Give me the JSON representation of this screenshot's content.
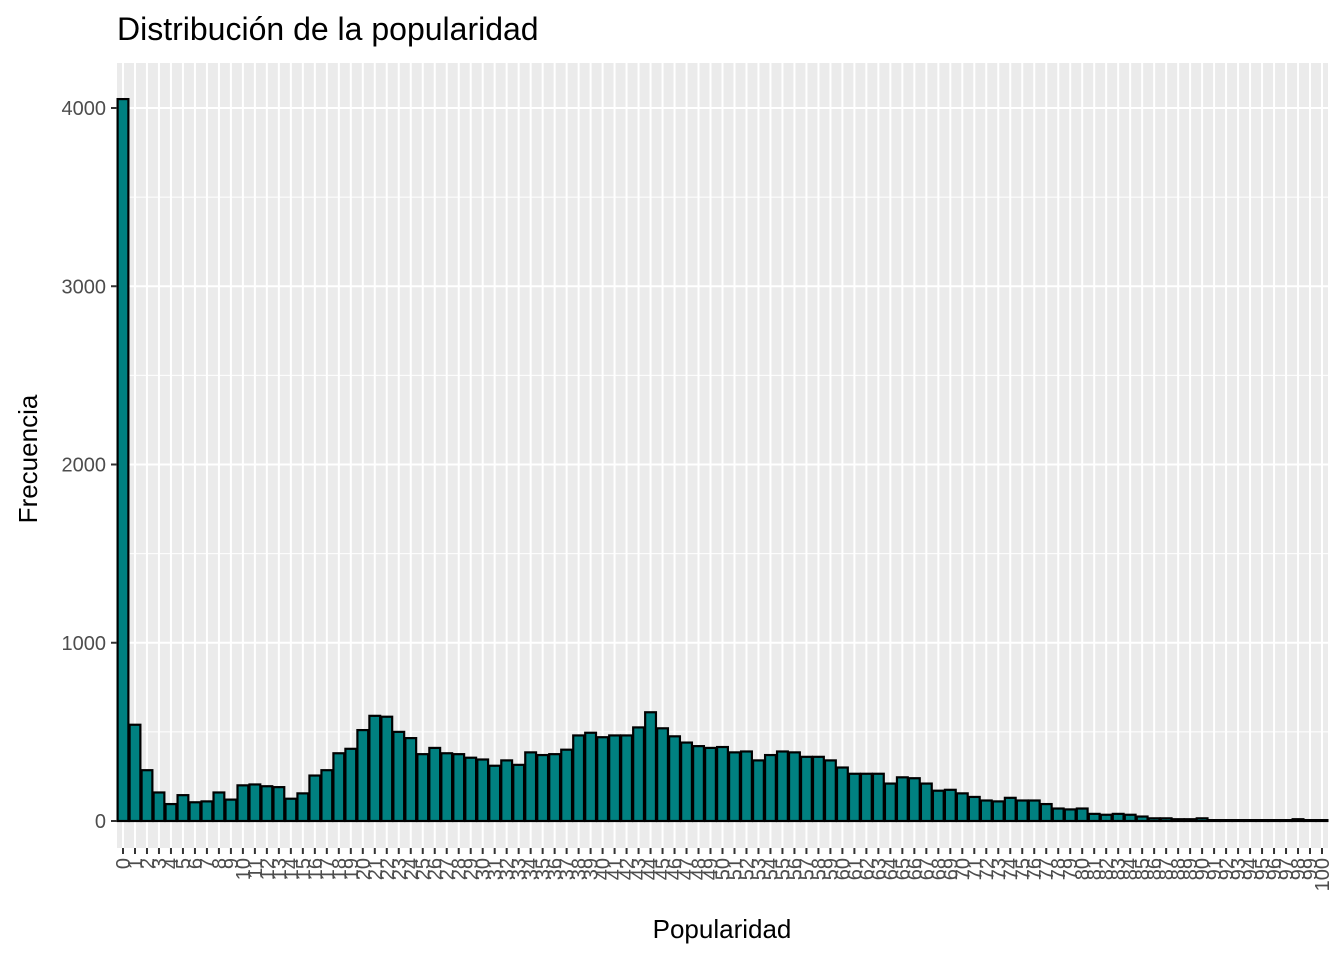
{
  "chart_data": {
    "type": "bar",
    "title": "Distribución de la popularidad",
    "xlabel": "Popularidad",
    "ylabel": "Frecuencia",
    "ylim": [
      0,
      4250
    ],
    "y_ticks": [
      0,
      1000,
      2000,
      3000,
      4000
    ],
    "categories": [
      "0",
      "1",
      "2",
      "3",
      "4",
      "5",
      "6",
      "7",
      "8",
      "9",
      "10",
      "11",
      "12",
      "13",
      "14",
      "15",
      "16",
      "17",
      "18",
      "19",
      "20",
      "21",
      "22",
      "23",
      "24",
      "25",
      "26",
      "27",
      "28",
      "29",
      "30",
      "31",
      "32",
      "33",
      "34",
      "35",
      "36",
      "37",
      "38",
      "39",
      "40",
      "41",
      "42",
      "43",
      "44",
      "45",
      "46",
      "47",
      "48",
      "49",
      "50",
      "51",
      "52",
      "53",
      "54",
      "55",
      "56",
      "57",
      "58",
      "59",
      "60",
      "61",
      "62",
      "63",
      "64",
      "65",
      "66",
      "67",
      "68",
      "69",
      "70",
      "71",
      "72",
      "73",
      "74",
      "75",
      "76",
      "77",
      "78",
      "79",
      "80",
      "81",
      "82",
      "83",
      "84",
      "85",
      "86",
      "87",
      "88",
      "89",
      "90",
      "91",
      "92",
      "93",
      "94",
      "95",
      "96",
      "97",
      "98",
      "99",
      "100"
    ],
    "values": [
      4050,
      540,
      285,
      160,
      95,
      145,
      105,
      110,
      160,
      120,
      200,
      205,
      195,
      190,
      125,
      155,
      255,
      285,
      380,
      405,
      510,
      590,
      585,
      500,
      465,
      375,
      410,
      380,
      375,
      355,
      345,
      310,
      340,
      315,
      385,
      370,
      375,
      400,
      480,
      495,
      470,
      480,
      480,
      525,
      610,
      520,
      475,
      440,
      420,
      410,
      415,
      385,
      390,
      340,
      370,
      390,
      385,
      360,
      360,
      340,
      300,
      265,
      265,
      265,
      210,
      245,
      240,
      210,
      170,
      175,
      155,
      135,
      115,
      110,
      130,
      115,
      115,
      95,
      70,
      65,
      70,
      40,
      35,
      40,
      35,
      25,
      15,
      15,
      10,
      10,
      15,
      5,
      5,
      5,
      5,
      5,
      5,
      5,
      10,
      5,
      5
    ],
    "fill_color": "#008080",
    "border_color": "#000000",
    "panel_bg": "#EBEBEB",
    "grid": true,
    "legend": "none"
  }
}
